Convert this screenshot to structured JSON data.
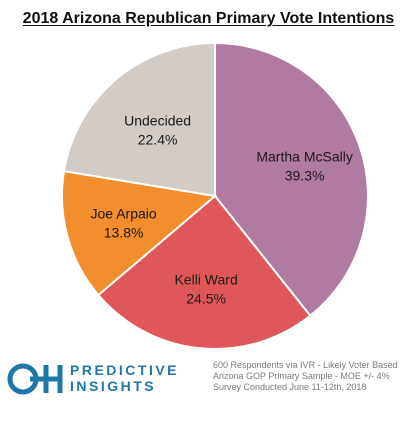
{
  "chart_data": {
    "type": "pie",
    "title": "2018 Arizona Republican Primary Vote Intentions",
    "slices": [
      {
        "name": "Martha McSally",
        "label": "39.3%",
        "value": 39.3,
        "color": "#b07aa1"
      },
      {
        "name": "Kelli Ward",
        "label": "24.5%",
        "value": 24.5,
        "color": "#e05759"
      },
      {
        "name": "Joe Arpaio",
        "label": "13.8%",
        "value": 13.8,
        "color": "#f28e2b"
      },
      {
        "name": "Undecided",
        "label": "22.4%",
        "value": 22.4,
        "color": "#d3cbc6"
      }
    ],
    "start_angle_deg": 0,
    "direction": "clockwise",
    "legend": "none"
  },
  "logo": {
    "mark": "OH",
    "line1": "PREDICTIVE",
    "line2": "INSIGHTS",
    "color": "#1f77a8"
  },
  "footnote": {
    "line1": "600 Respondents via IVR - Likely Voter Based",
    "line2": "Arizona GOP Primary Sample - MOE +/- 4%",
    "line3": "Survey Conducted June 11-12th, 2018"
  }
}
